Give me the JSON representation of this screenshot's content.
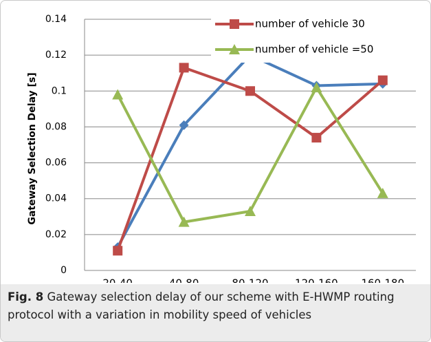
{
  "chart_data": {
    "type": "line",
    "ylabel": "Gateway Selection Delay [s]",
    "categories": [
      "20-40",
      "40-80",
      "80-120",
      "120-160",
      "160-180"
    ],
    "series": [
      {
        "color": "#4a7ebb",
        "marker": "diamond",
        "values": [
          0.013,
          0.081,
          0.12,
          0.103,
          0.104
        ]
      },
      {
        "name": "number of vehicle 30",
        "color": "#be4b48",
        "marker": "square",
        "values": [
          0.011,
          0.113,
          0.1,
          0.074,
          0.106
        ]
      },
      {
        "name": "number of vehicle =50",
        "color": "#98b954",
        "marker": "triangle",
        "values": [
          0.098,
          0.027,
          0.033,
          0.102,
          0.043
        ]
      }
    ],
    "ylim": [
      0,
      0.14
    ],
    "yticks": [
      0,
      0.02,
      0.04,
      0.06,
      0.08,
      0.1,
      0.12,
      0.14
    ],
    "grid": true,
    "legend": "upper right",
    "caption_label": "Fig. 8",
    "caption": "Gateway selection delay of our scheme with E-HWMP routing protocol with a variation in mobility speed of vehicles"
  }
}
